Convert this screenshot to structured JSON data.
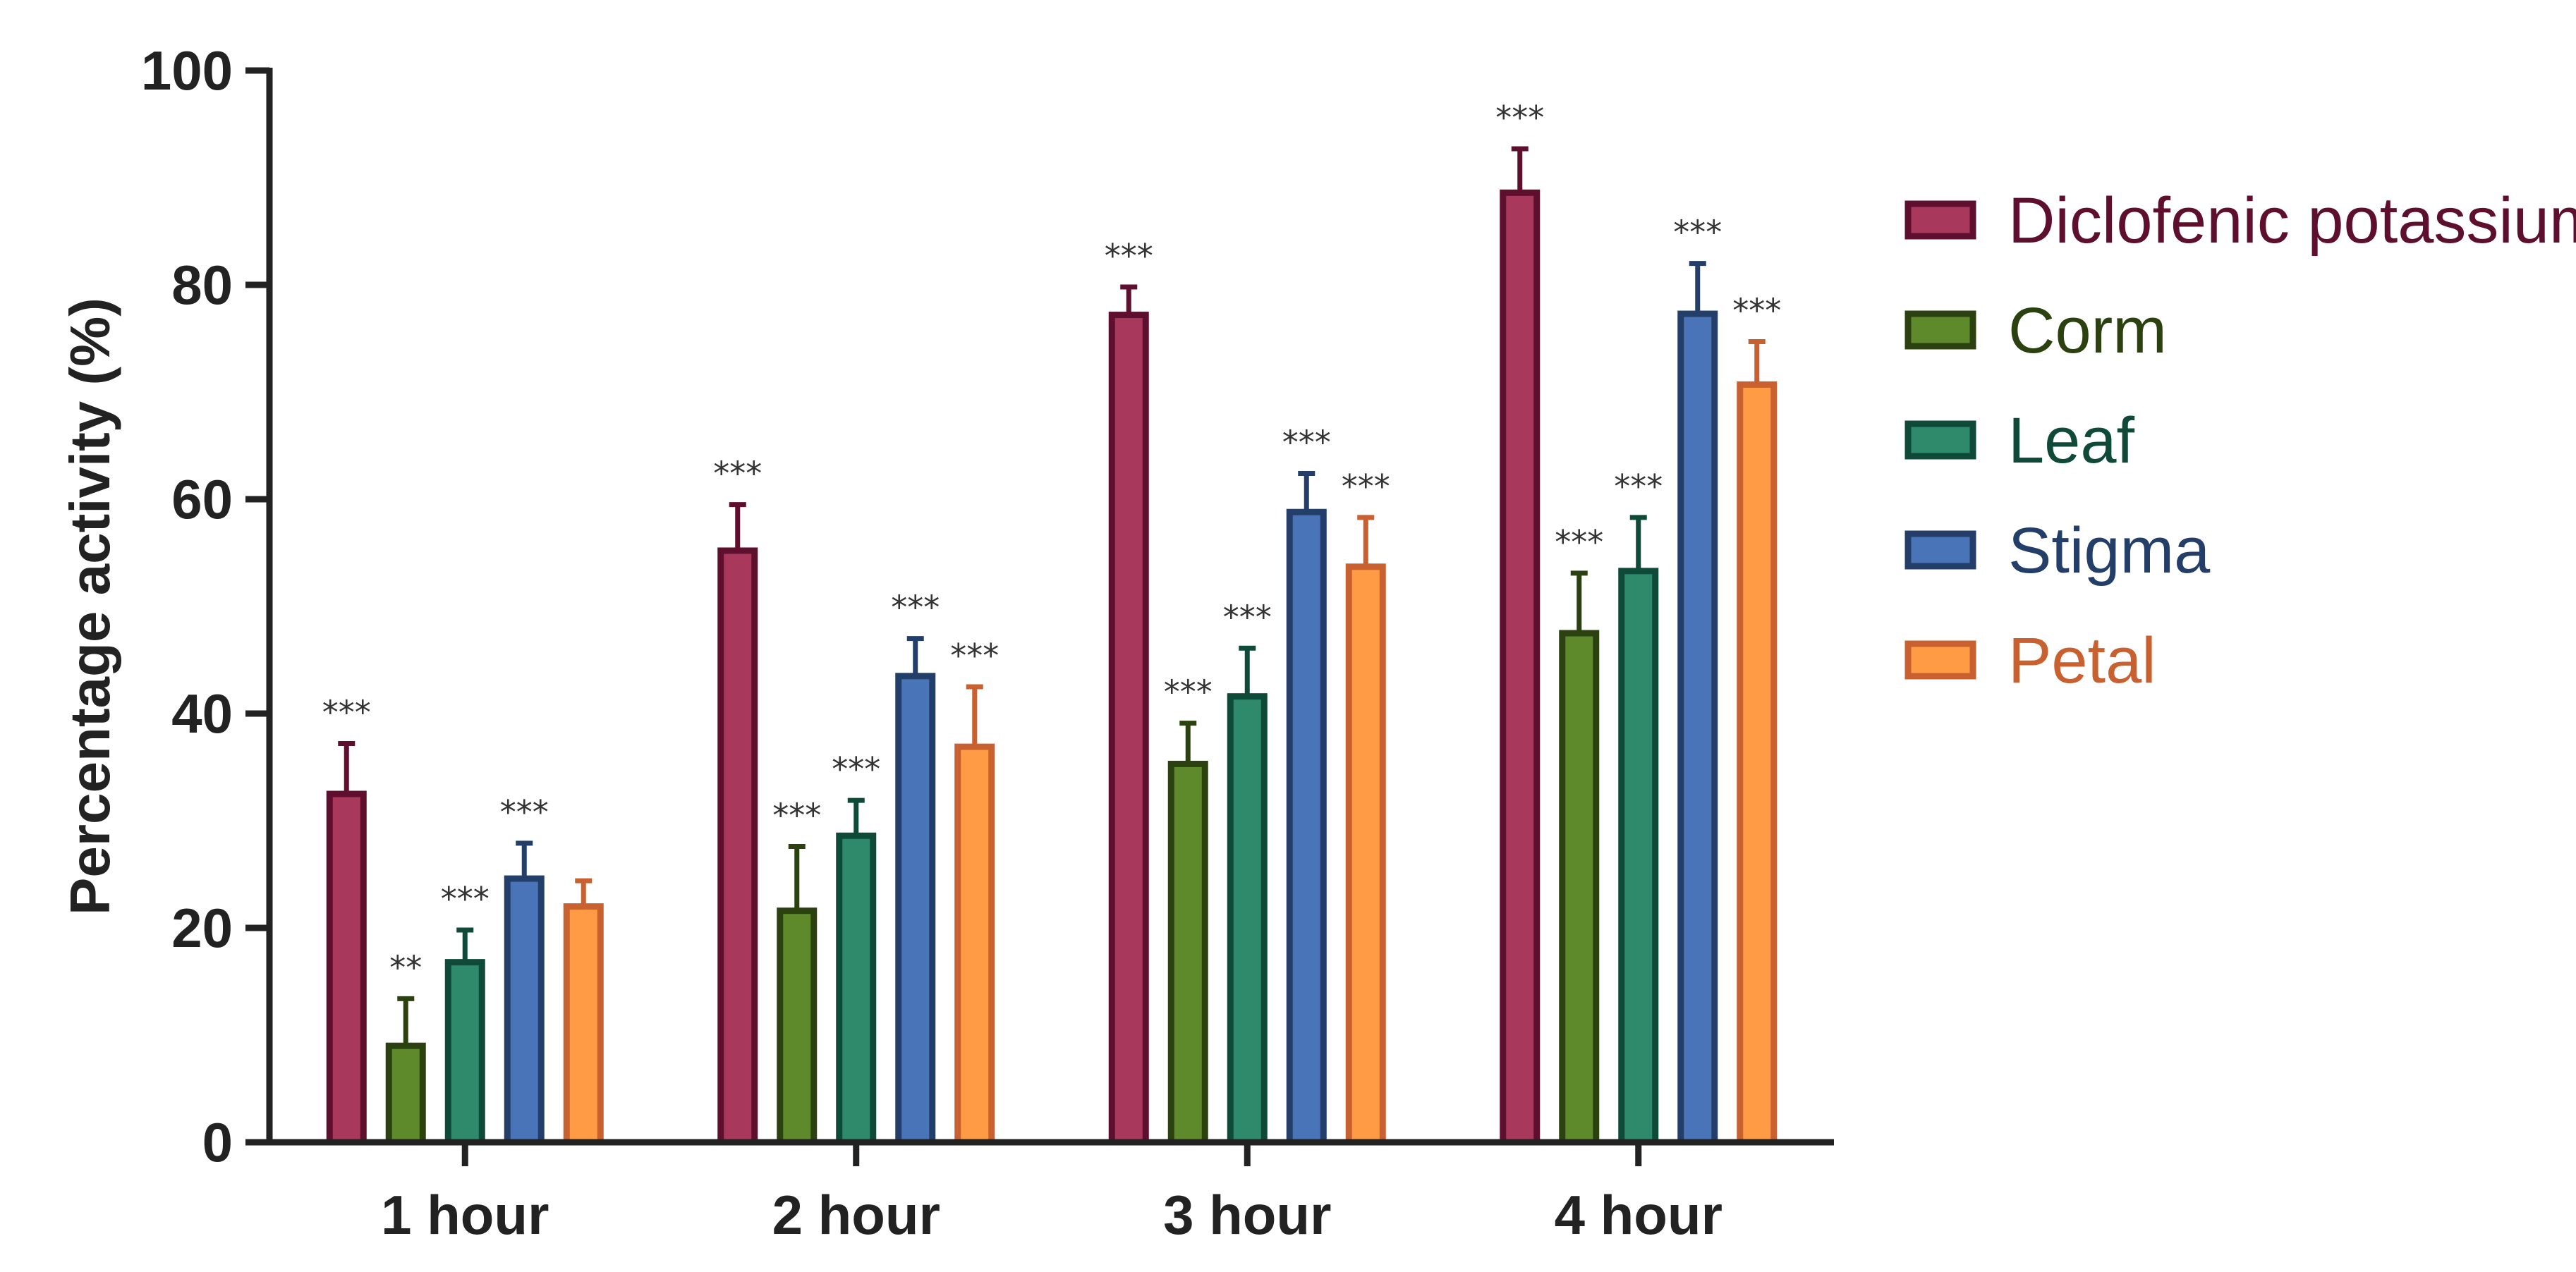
{
  "chart_data": {
    "type": "bar",
    "title": "",
    "xlabel": "",
    "ylabel": "Percentage activity (%)",
    "ylim": [
      0,
      100
    ],
    "yticks": [
      "0",
      "20",
      "40",
      "60",
      "80",
      "100"
    ],
    "grid": false,
    "legend_position": "right",
    "categories": [
      "1 hour",
      "2 hour",
      "3 hour",
      "4 hour"
    ],
    "series": [
      {
        "name": "Diclofenic potassium",
        "fill": "#A8385C",
        "edge": "#5E0F2E",
        "values": [
          32.5,
          55.2,
          77.2,
          88.6
        ],
        "errors": [
          4.7,
          4.3,
          2.6,
          4.1
        ],
        "significance": [
          "***",
          "***",
          "***",
          "***"
        ]
      },
      {
        "name": "Corm",
        "fill": "#5E8A2C",
        "edge": "#2B4210",
        "values": [
          9.0,
          21.6,
          35.3,
          47.5
        ],
        "errors": [
          4.4,
          6.0,
          3.8,
          5.6
        ],
        "significance": [
          "**",
          "***",
          "***",
          "***"
        ]
      },
      {
        "name": "Leaf",
        "fill": "#2F8A6C",
        "edge": "#0F4A38",
        "values": [
          16.8,
          28.6,
          41.6,
          53.3
        ],
        "errors": [
          3.0,
          3.3,
          4.5,
          5.0
        ],
        "significance": [
          "***",
          "***",
          "***",
          "***"
        ]
      },
      {
        "name": "Stigma",
        "fill": "#4A74B8",
        "edge": "#243E6A",
        "values": [
          24.6,
          43.5,
          58.8,
          77.3
        ],
        "errors": [
          3.3,
          3.5,
          3.6,
          4.7
        ],
        "significance": [
          "***",
          "***",
          "***",
          "***"
        ]
      },
      {
        "name": "Petal",
        "fill": "#FF9A45",
        "edge": "#C86030",
        "values": [
          22.0,
          36.9,
          53.7,
          70.7
        ],
        "errors": [
          2.4,
          5.6,
          4.6,
          4.0
        ],
        "significance": [
          "",
          "***",
          "***",
          "***"
        ]
      }
    ]
  }
}
